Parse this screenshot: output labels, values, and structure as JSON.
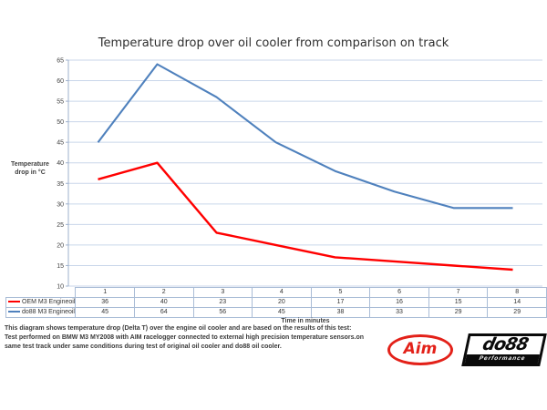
{
  "chart": {
    "title": "Temperature drop over oil cooler from comparison on track",
    "y_axis_title_lines": [
      "Temperature",
      "drop in °C"
    ],
    "x_axis_title": "Time in minutes"
  },
  "chart_data": {
    "type": "line",
    "title": "Temperature drop over oil cooler from comparison on track",
    "xlabel": "Time in minutes",
    "ylabel": "Temperature drop in °C",
    "categories": [
      "1",
      "2",
      "3",
      "4",
      "5",
      "6",
      "7",
      "8"
    ],
    "series": [
      {
        "name": "OEM M3 Engineoil",
        "color": "#ff0000",
        "stroke_width": 2.4,
        "values": [
          36,
          40,
          23,
          20,
          17,
          16,
          15,
          14
        ]
      },
      {
        "name": "do88 M3 Engineoil",
        "color": "#4f81bd",
        "stroke_width": 2.1,
        "values": [
          45,
          64,
          56,
          45,
          38,
          33,
          29,
          29
        ]
      }
    ],
    "ylim": [
      10,
      65
    ],
    "yticks": [
      10,
      15,
      20,
      25,
      30,
      35,
      40,
      45,
      50,
      55,
      60,
      65
    ],
    "grid": true,
    "legend_position": "data-table-left"
  },
  "footer": {
    "lines": [
      "This diagram shows temperature drop (Delta T) over the engine oil cooler and are based on the results of this test:",
      "Test performed on BMW M3 MY2008 with AIM racelogger connected to external high precision temperature sensors.on",
      "same test track under same conditions during test of original oil cooler and do88 oil cooler."
    ]
  },
  "logos": {
    "aim": {
      "text": "Aim",
      "color": "#e32119"
    },
    "do88": {
      "text": "do88",
      "sub": "Performance"
    }
  },
  "colors": {
    "grid": "#c9d6ea",
    "axis": "#9db0cc",
    "table_border": "#a9bcd6",
    "text": "#3f3f3f"
  }
}
